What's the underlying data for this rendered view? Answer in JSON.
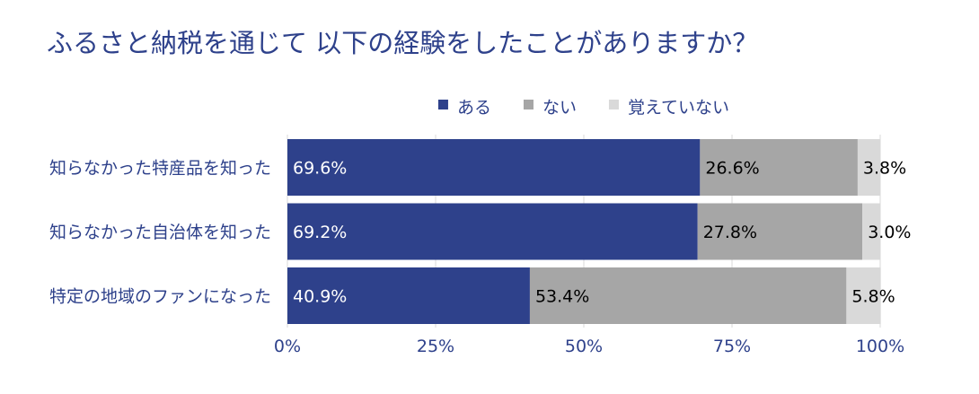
{
  "chart_data": {
    "type": "bar",
    "orientation": "horizontal",
    "stacked": true,
    "title": "ふるさと納税を通じて 以下の経験をしたことがありますか？",
    "categories": [
      "知らなかった特産品を知った",
      "知らなかった自治体を知った",
      "特定の地域のファンになった"
    ],
    "series": [
      {
        "name": "ある",
        "values": [
          69.6,
          69.2,
          40.9
        ],
        "color": "#2e418b",
        "label_color": "#ffffff"
      },
      {
        "name": "ない",
        "values": [
          26.6,
          27.8,
          53.4
        ],
        "color": "#a6a6a6",
        "label_color": "#000000"
      },
      {
        "name": "覚えていない",
        "values": [
          3.8,
          3.0,
          5.8
        ],
        "color": "#d9d9d9",
        "label_color": "#000000"
      }
    ],
    "value_suffix": "%",
    "xlim": [
      0,
      100
    ],
    "x_ticks": [
      0,
      25,
      50,
      75,
      100
    ],
    "x_tick_labels": [
      "0%",
      "25%",
      "50%",
      "75%",
      "100%"
    ],
    "legend_position": "top",
    "grid": "vertical",
    "colors": {
      "title": "#2e418b",
      "axis_text": "#2e418b",
      "gridline": "#d9d9d9"
    }
  }
}
